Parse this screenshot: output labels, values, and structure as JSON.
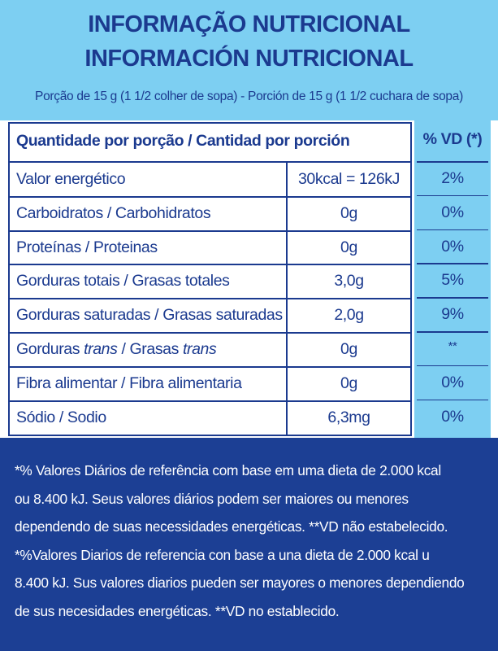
{
  "header": {
    "title_pt": "INFORMAÇÃO NUTRICIONAL",
    "title_es": "INFORMACIÓN NUTRICIONAL",
    "serving": "Porção de 15 g (1 1/2 colher de sopa) - Porción de 15 g (1 1/2 cuchara de sopa)"
  },
  "table": {
    "header": [
      "Quantidade por porção / Cantidad por porción",
      "% VD (*)"
    ],
    "rows": [
      [
        "Valor energético",
        "30kcal = 126kJ",
        "2%"
      ],
      [
        "Carboidratos / Carbohidratos",
        "0g",
        "0%"
      ],
      [
        "Proteínas / Proteinas",
        "0g",
        "0%"
      ],
      [
        "Gorduras totais / Grasas totales",
        "3,0g",
        "5%"
      ],
      [
        "Gorduras saturadas / Grasas saturadas",
        "2,0g",
        "9%"
      ],
      [
        [
          "Gorduras ",
          "trans",
          " / Grasas ",
          "trans"
        ],
        "0g",
        "**"
      ],
      [
        "Fibra alimentar / Fibra alimentaria",
        "0g",
        "0%"
      ],
      [
        "Sódio / Sodio",
        "6,3mg",
        "0%"
      ]
    ]
  },
  "footnote": {
    "lines": [
      "*% Valores Diários de referência com base em uma dieta de 2.000 kcal",
      "ou 8.400 kJ. Seus valores diários podem ser maiores ou menores",
      "dependendo de suas necessidades energéticas. **VD não estabelecido.",
      "*%Valores Diarios de referencia con base a una dieta de 2.000 kcal u",
      "8.400 kJ. Sus valores diarios pueden ser mayores o menores dependiendo",
      "de sus necesidades energéticas. **VD no establecido."
    ]
  }
}
